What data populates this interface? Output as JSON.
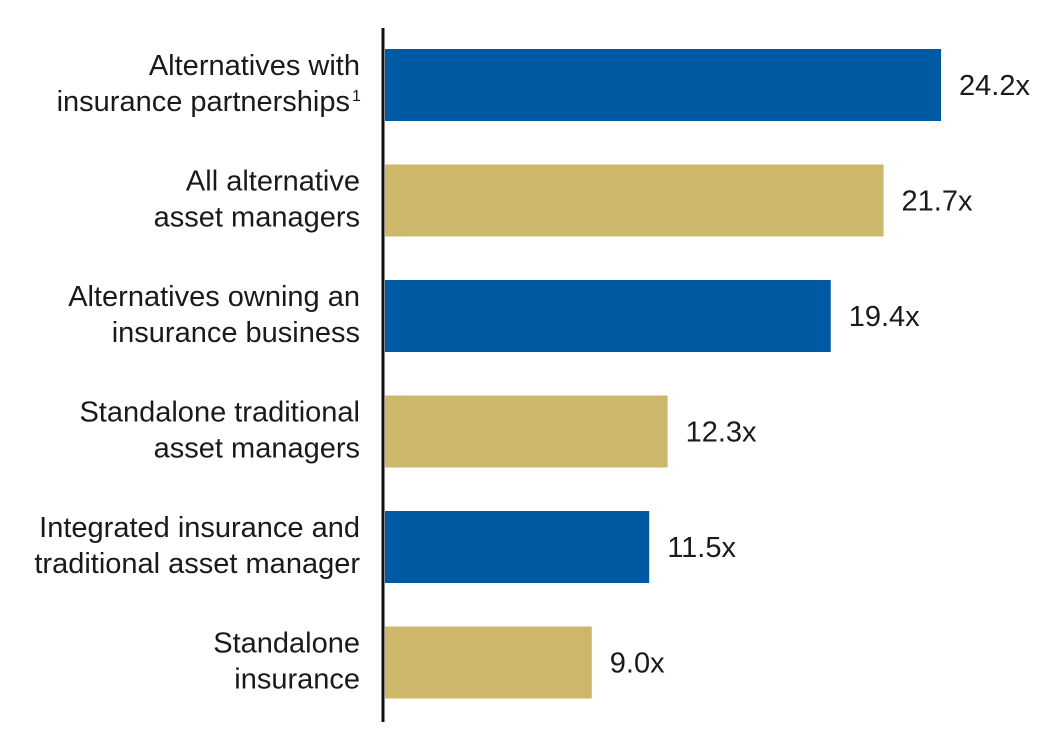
{
  "chart_data": {
    "type": "bar",
    "orientation": "horizontal",
    "categories": [
      [
        "Alternatives with",
        "insurance partnerships"
      ],
      [
        "All alternative",
        "asset managers"
      ],
      [
        "Alternatives owning an",
        "insurance business"
      ],
      [
        "Standalone traditional",
        "asset managers"
      ],
      [
        "Integrated insurance and",
        "traditional asset manager"
      ],
      [
        "Standalone",
        "insurance"
      ]
    ],
    "footnote_markers": [
      "1",
      "",
      "",
      "",
      "",
      ""
    ],
    "values": [
      24.2,
      21.7,
      19.4,
      12.3,
      11.5,
      9.0
    ],
    "value_labels": [
      "24.2x",
      "21.7x",
      "19.4x",
      "12.3x",
      "11.5x",
      "9.0x"
    ],
    "bar_colors": [
      "#005aa3",
      "#cdb76a",
      "#005aa3",
      "#cdb76a",
      "#005aa3",
      "#cdb76a"
    ],
    "axis_color": "#111111",
    "xlim": [
      0,
      24.2
    ],
    "title": "",
    "xlabel": "",
    "ylabel": "",
    "grid": false,
    "legend": false
  }
}
